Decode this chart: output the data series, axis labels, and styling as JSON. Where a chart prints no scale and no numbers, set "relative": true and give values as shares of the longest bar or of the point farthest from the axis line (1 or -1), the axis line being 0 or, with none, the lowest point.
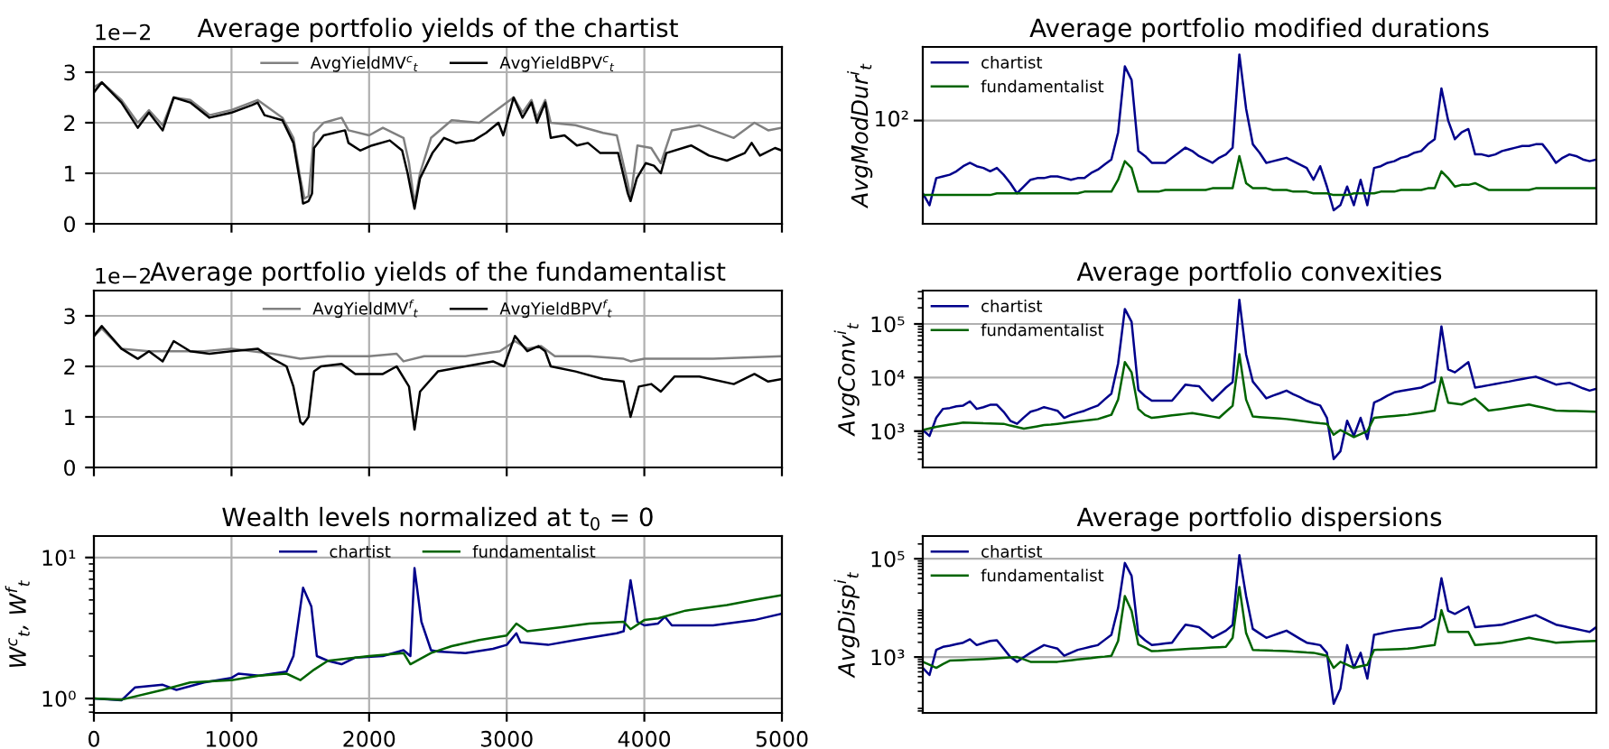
{
  "chart_data": [
    {
      "type": "line",
      "title": "Average portfolio yields of the chartist",
      "annotations": [
        "1e−2"
      ],
      "xlim": [
        0,
        5000
      ],
      "xticks": [
        0,
        1000,
        2000,
        3000,
        4000,
        5000
      ],
      "ylim": [
        0,
        3.5
      ],
      "yticks": [
        0,
        1,
        2,
        3
      ],
      "tick_labels": "y",
      "grid": true,
      "legend": "top",
      "series": [
        {
          "name": "AvgYieldMV$^{c}$$_{t}$",
          "color": "#808080",
          "x": [
            0,
            57,
            200,
            319,
            400,
            500,
            580,
            700,
            840,
            1000,
            1190,
            1370,
            1450,
            1500,
            1530,
            1560,
            1600,
            1670,
            1800,
            1850,
            2000,
            2100,
            2250,
            2290,
            2330,
            2370,
            2450,
            2600,
            2800,
            2950,
            3050,
            3115,
            3180,
            3220,
            3280,
            3320,
            3500,
            3700,
            3800,
            3880,
            3900,
            3950,
            4050,
            4120,
            4200,
            4400,
            4650,
            4800,
            4900,
            5000
          ],
          "values": [
            2.7,
            2.8,
            2.45,
            2.0,
            2.25,
            1.95,
            2.5,
            2.45,
            2.15,
            2.25,
            2.45,
            2.1,
            1.7,
            0.9,
            0.5,
            0.55,
            1.8,
            2.0,
            2.1,
            1.85,
            1.75,
            1.9,
            1.7,
            1.2,
            0.4,
            1.0,
            1.7,
            2.05,
            2.0,
            2.3,
            2.5,
            2.2,
            2.45,
            2.1,
            2.45,
            2.0,
            1.95,
            1.8,
            1.75,
            0.8,
            0.5,
            1.55,
            1.5,
            1.2,
            1.85,
            1.95,
            1.7,
            2.0,
            1.85,
            1.9
          ]
        },
        {
          "name": "AvgYieldBPV$^{c}$$_{t}$",
          "color": "#000000",
          "x": [
            0,
            57,
            200,
            319,
            400,
            500,
            580,
            700,
            840,
            1000,
            1150,
            1190,
            1240,
            1370,
            1450,
            1500,
            1520,
            1560,
            1585,
            1600,
            1670,
            1825,
            1850,
            1935,
            2020,
            2150,
            2240,
            2280,
            2330,
            2370,
            2460,
            2545,
            2630,
            2760,
            2850,
            2940,
            2975,
            3050,
            3115,
            3180,
            3220,
            3280,
            3320,
            3420,
            3510,
            3590,
            3680,
            3810,
            3880,
            3900,
            3945,
            4010,
            4070,
            4120,
            4160,
            4340,
            4470,
            4600,
            4730,
            4780,
            4840,
            4950,
            5000
          ],
          "values": [
            2.6,
            2.8,
            2.4,
            1.9,
            2.2,
            1.85,
            2.5,
            2.4,
            2.1,
            2.2,
            2.35,
            2.4,
            2.15,
            2.05,
            1.6,
            0.8,
            0.4,
            0.45,
            0.6,
            1.5,
            1.75,
            1.85,
            1.6,
            1.45,
            1.55,
            1.65,
            1.45,
            1.0,
            0.3,
            0.9,
            1.4,
            1.7,
            1.6,
            1.65,
            1.8,
            2.0,
            1.75,
            2.5,
            2.1,
            2.4,
            2.0,
            2.4,
            1.7,
            1.75,
            1.55,
            1.6,
            1.4,
            1.4,
            0.6,
            0.45,
            0.9,
            1.2,
            1.15,
            1.0,
            1.4,
            1.55,
            1.35,
            1.25,
            1.4,
            1.6,
            1.35,
            1.5,
            1.45
          ]
        }
      ]
    },
    {
      "type": "line",
      "title": "Average portfolio modified durations",
      "ylabel": "AvgModDur$^{i}$$_{t}$",
      "relative": true,
      "annotations": [
        "10²"
      ],
      "tick_labels": "y",
      "grid": "y",
      "legend": "top left",
      "ref_lines": [
        {
          "axis": "y",
          "value": 0.61,
          "color": "#b0b0b0"
        }
      ],
      "categories": [
        null,
        null,
        null,
        null,
        null,
        null,
        null,
        null,
        null,
        null,
        null,
        null,
        null,
        null,
        null,
        null,
        null,
        null,
        null,
        null,
        null,
        null,
        null,
        null,
        null,
        null,
        null,
        null,
        null,
        null,
        null,
        null,
        null,
        null,
        null,
        null,
        null,
        null,
        null,
        null,
        null,
        null,
        null,
        null,
        null,
        null,
        null,
        null,
        null,
        null,
        null,
        null,
        null,
        null,
        null,
        null,
        null,
        null,
        null,
        null,
        null,
        null,
        null,
        null,
        null,
        null,
        null,
        null,
        null,
        null,
        null,
        null,
        null,
        null,
        null,
        null,
        null,
        null,
        null,
        null,
        null,
        null,
        null,
        null,
        null,
        null,
        null,
        null,
        null,
        null,
        null,
        null,
        null,
        null,
        null,
        null,
        null,
        null,
        null,
        null,
        null
      ],
      "series": [
        {
          "name": "chartist",
          "color": "#00008b",
          "values": [
            0.18,
            0.11,
            0.27,
            0.28,
            0.29,
            0.31,
            0.34,
            0.36,
            0.34,
            0.33,
            0.31,
            0.33,
            0.29,
            0.24,
            0.18,
            0.22,
            0.26,
            0.27,
            0.27,
            0.28,
            0.28,
            0.27,
            0.26,
            0.27,
            0.27,
            0.3,
            0.32,
            0.35,
            0.38,
            0.54,
            0.93,
            0.85,
            0.43,
            0.4,
            0.36,
            0.36,
            0.36,
            0.39,
            0.42,
            0.45,
            0.43,
            0.4,
            0.38,
            0.36,
            0.39,
            0.41,
            0.45,
            1,
            0.68,
            0.47,
            0.42,
            0.36,
            0.37,
            0.38,
            0.39,
            0.37,
            0.35,
            0.33,
            0.26,
            0.34,
            0.22,
            0.08,
            0.11,
            0.22,
            0.11,
            0.26,
            0.11,
            0.33,
            0.34,
            0.36,
            0.37,
            0.39,
            0.4,
            0.42,
            0.43,
            0.47,
            0.5,
            0.8,
            0.61,
            0.5,
            0.54,
            0.56,
            0.41,
            0.41,
            0.4,
            0.41,
            0.43,
            0.44,
            0.45,
            0.46,
            0.46,
            0.47,
            0.47,
            0.42,
            0.36,
            0.39,
            0.41,
            0.4,
            0.38,
            0.37,
            0.38
          ]
        },
        {
          "name": "fundamentalist",
          "color": "#006400",
          "values": [
            0.17,
            0.17,
            0.17,
            0.17,
            0.17,
            0.17,
            0.17,
            0.17,
            0.17,
            0.17,
            0.17,
            0.18,
            0.18,
            0.18,
            0.18,
            0.18,
            0.18,
            0.18,
            0.18,
            0.18,
            0.18,
            0.18,
            0.18,
            0.18,
            0.19,
            0.19,
            0.19,
            0.19,
            0.19,
            0.26,
            0.37,
            0.33,
            0.19,
            0.19,
            0.19,
            0.19,
            0.2,
            0.2,
            0.2,
            0.2,
            0.2,
            0.2,
            0.2,
            0.21,
            0.21,
            0.21,
            0.21,
            0.4,
            0.24,
            0.21,
            0.21,
            0.21,
            0.2,
            0.2,
            0.2,
            0.19,
            0.19,
            0.19,
            0.18,
            0.18,
            0.18,
            0.17,
            0.17,
            0.17,
            0.18,
            0.18,
            0.18,
            0.18,
            0.19,
            0.19,
            0.19,
            0.2,
            0.2,
            0.2,
            0.2,
            0.21,
            0.21,
            0.31,
            0.27,
            0.22,
            0.23,
            0.23,
            0.24,
            0.22,
            0.2,
            0.2,
            0.2,
            0.2,
            0.2,
            0.2,
            0.2,
            0.21,
            0.21,
            0.21,
            0.21,
            0.21,
            0.21,
            0.21,
            0.21,
            0.21,
            0.21
          ]
        }
      ]
    },
    {
      "type": "line",
      "title": "Average portfolio yields of the fundamentalist",
      "annotations": [
        "1e−2"
      ],
      "xlim": [
        0,
        5000
      ],
      "xticks": [
        0,
        1000,
        2000,
        3000,
        4000,
        5000
      ],
      "ylim": [
        0,
        3.5
      ],
      "yticks": [
        0,
        1,
        2,
        3
      ],
      "tick_labels": "y",
      "grid": true,
      "legend": "top",
      "series": [
        {
          "name": "AvgYieldMV$^{f}$$_{t}$",
          "color": "#808080",
          "x": [
            0,
            57,
            200,
            400,
            600,
            800,
            1000,
            1150,
            1300,
            1400,
            1500,
            1700,
            2000,
            2200,
            2250,
            2400,
            2700,
            2950,
            3060,
            3150,
            3250,
            3350,
            3600,
            3850,
            3900,
            4000,
            4500,
            5000
          ],
          "values": [
            2.6,
            2.75,
            2.35,
            2.3,
            2.3,
            2.3,
            2.35,
            2.3,
            2.25,
            2.2,
            2.15,
            2.2,
            2.2,
            2.25,
            2.1,
            2.2,
            2.2,
            2.3,
            2.5,
            2.35,
            2.4,
            2.2,
            2.2,
            2.15,
            2.1,
            2.15,
            2.15,
            2.2
          ]
        },
        {
          "name": "AvgYieldBPV$^{f}$$_{t}$",
          "color": "#000000",
          "x": [
            0,
            57,
            200,
            319,
            400,
            500,
            580,
            700,
            840,
            1000,
            1190,
            1300,
            1400,
            1450,
            1500,
            1520,
            1560,
            1600,
            1650,
            1800,
            1900,
            2100,
            2200,
            2290,
            2330,
            2370,
            2500,
            2700,
            2900,
            2980,
            3060,
            3150,
            3230,
            3280,
            3320,
            3500,
            3700,
            3850,
            3900,
            3960,
            4050,
            4120,
            4220,
            4400,
            4650,
            4800,
            4900,
            5000
          ],
          "values": [
            2.6,
            2.8,
            2.35,
            2.15,
            2.3,
            2.1,
            2.5,
            2.3,
            2.25,
            2.3,
            2.35,
            2.15,
            2.0,
            1.6,
            0.9,
            0.85,
            1.0,
            1.9,
            2.0,
            2.05,
            1.85,
            1.85,
            2.0,
            1.6,
            0.75,
            1.5,
            1.9,
            2.0,
            2.1,
            2.0,
            2.6,
            2.3,
            2.4,
            2.3,
            2.0,
            1.9,
            1.75,
            1.7,
            1.0,
            1.6,
            1.65,
            1.5,
            1.8,
            1.8,
            1.65,
            1.85,
            1.7,
            1.75
          ]
        }
      ]
    },
    {
      "type": "line",
      "title": "Average portfolio convexities",
      "ylabel": "AvgConv$^{i}$$_{t}$",
      "log": "y",
      "ylim": [
        210,
        420000
      ],
      "yticks": [
        {
          "value": 1000,
          "label": "10³"
        },
        {
          "value": 10000,
          "label": "10⁴"
        },
        {
          "value": 100000,
          "label": "10⁵"
        }
      ],
      "tick_labels": "y",
      "grid": "y",
      "legend": "top left",
      "categories": [
        null,
        null,
        null,
        null,
        null,
        null,
        null,
        null,
        null,
        null,
        null,
        null,
        null,
        null,
        null,
        null,
        null,
        null,
        null,
        null,
        null,
        null,
        null,
        null,
        null,
        null,
        null,
        null,
        null,
        null,
        null,
        null,
        null,
        null,
        null,
        null,
        null,
        null,
        null,
        null,
        null,
        null,
        null,
        null,
        null,
        null,
        null,
        null,
        null,
        null,
        null,
        null,
        null,
        null,
        null,
        null,
        null,
        null,
        null,
        null,
        null,
        null,
        null,
        null,
        null,
        null,
        null,
        null,
        null,
        null,
        null,
        null,
        null,
        null,
        null,
        null,
        null,
        null,
        null,
        null,
        null,
        null,
        null,
        null,
        null,
        null,
        null,
        null,
        null,
        null,
        null,
        null,
        null,
        null,
        null,
        null,
        null,
        null,
        null,
        null,
        null
      ],
      "series": [
        {
          "name": "chartist",
          "color": "#00008b",
          "values": [
            1050,
            810,
            1770,
            2600,
            2700,
            2900,
            3000,
            3600,
            2600,
            2800,
            3100,
            3100,
            2300,
            1560,
            1370,
            1800,
            2300,
            2500,
            2800,
            2600,
            2400,
            1770,
            2000,
            2200,
            2400,
            2700,
            3000,
            3900,
            5000,
            18400,
            190000,
            110000,
            5900,
            4500,
            3700,
            3700,
            3700,
            3700,
            5200,
            7400,
            7100,
            6900,
            5000,
            3700,
            4900,
            6500,
            8200,
            283000,
            27000,
            8400,
            5900,
            4100,
            4600,
            5100,
            5700,
            4900,
            4300,
            3700,
            3300,
            3000,
            1770,
            300,
            420,
            1560,
            810,
            1770,
            710,
            3400,
            3900,
            4600,
            5300,
            5600,
            5900,
            6200,
            6500,
            7400,
            8400,
            90000,
            14200,
            12500,
            15600,
            19400,
            6500,
            6800,
            7200,
            7600,
            8000,
            8400,
            8900,
            9400,
            9900,
            10400,
            9300,
            8300,
            7400,
            7700,
            8000,
            7100,
            6300,
            5700,
            6200
          ]
        },
        {
          "name": "fundamentalist",
          "color": "#006400",
          "values": [
            1050,
            1120,
            1200,
            1260,
            1320,
            1380,
            1440,
            1430,
            1420,
            1400,
            1390,
            1380,
            1370,
            1270,
            1190,
            1110,
            1170,
            1230,
            1300,
            1330,
            1370,
            1420,
            1470,
            1520,
            1570,
            1620,
            1680,
            1840,
            2020,
            3870,
            19400,
            12500,
            2600,
            2000,
            1770,
            1830,
            1900,
            1970,
            2030,
            2100,
            2180,
            2070,
            1970,
            1870,
            1770,
            2300,
            2980,
            27200,
            3870,
            1870,
            1830,
            1790,
            1750,
            1720,
            1680,
            1620,
            1560,
            1500,
            1440,
            1400,
            1370,
            855,
            1050,
            900,
            771,
            880,
            1000,
            1770,
            1820,
            1870,
            1920,
            1970,
            2020,
            2110,
            2200,
            2310,
            2420,
            10000,
            3400,
            3270,
            3140,
            3570,
            4070,
            3140,
            2420,
            2520,
            2620,
            2740,
            2870,
            3000,
            3140,
            2940,
            2760,
            2590,
            2420,
            2400,
            2380,
            2360,
            2340,
            2320,
            2300
          ]
        }
      ]
    },
    {
      "type": "line",
      "title": "Wealth levels normalized at t$_{0}$ = 0",
      "ylabel": "W$^{c}$$_{t}$, W$^{f}$$_{t}$",
      "log": "y",
      "xlim": [
        0,
        5000
      ],
      "xticks": [
        0,
        1000,
        2000,
        3000,
        4000,
        5000
      ],
      "ylim": [
        0.79,
        14.2
      ],
      "yticks": [
        {
          "value": 1,
          "label": "10⁰"
        },
        {
          "value": 10,
          "label": "10¹"
        }
      ],
      "grid": true,
      "legend": "top",
      "series": [
        {
          "name": "chartist",
          "color": "#00008b",
          "x": [
            0,
            200,
            300,
            500,
            600,
            800,
            1000,
            1050,
            1200,
            1400,
            1450,
            1520,
            1580,
            1620,
            1700,
            1800,
            1900,
            2100,
            2250,
            2300,
            2330,
            2380,
            2450,
            2500,
            2700,
            2900,
            3000,
            3070,
            3100,
            3300,
            3500,
            3800,
            3850,
            3900,
            3950,
            4000,
            4100,
            4150,
            4200,
            4500,
            4800,
            5000
          ],
          "values": [
            1.0,
            0.97,
            1.2,
            1.25,
            1.15,
            1.3,
            1.4,
            1.5,
            1.45,
            1.55,
            2.0,
            6.1,
            4.5,
            2.0,
            1.85,
            1.75,
            1.95,
            2.0,
            2.2,
            2.0,
            8.4,
            3.5,
            2.2,
            2.15,
            2.1,
            2.25,
            2.4,
            2.9,
            2.5,
            2.4,
            2.6,
            2.9,
            3.0,
            6.9,
            3.5,
            3.3,
            3.4,
            3.8,
            3.3,
            3.3,
            3.6,
            4.0
          ]
        },
        {
          "name": "fundamentalist",
          "color": "#006400",
          "x": [
            0,
            200,
            500,
            700,
            1000,
            1200,
            1400,
            1500,
            1600,
            1700,
            2000,
            2250,
            2300,
            2450,
            2600,
            2800,
            3000,
            3070,
            3150,
            3400,
            3600,
            3850,
            3900,
            4000,
            4100,
            4300,
            4600,
            4800,
            5000
          ],
          "values": [
            1.0,
            0.98,
            1.15,
            1.3,
            1.35,
            1.45,
            1.5,
            1.35,
            1.6,
            1.85,
            2.0,
            2.1,
            1.75,
            2.1,
            2.35,
            2.6,
            2.8,
            3.4,
            3.0,
            3.2,
            3.4,
            3.5,
            3.1,
            3.6,
            3.7,
            4.2,
            4.6,
            5.0,
            5.4
          ]
        }
      ]
    },
    {
      "type": "line",
      "title": "Average portfolio dispersions",
      "ylabel": "AvgDisp$^{i}$$_{t}$",
      "log": "y",
      "ylim": [
        73,
        290000
      ],
      "yticks": [
        {
          "value": 1000,
          "label": "10³"
        },
        {
          "value": 100000,
          "label": "10⁵"
        }
      ],
      "tick_labels": "y",
      "grid": "y",
      "legend": "top left",
      "categories": [
        null,
        null,
        null,
        null,
        null,
        null,
        null,
        null,
        null,
        null,
        null,
        null,
        null,
        null,
        null,
        null,
        null,
        null,
        null,
        null,
        null,
        null,
        null,
        null,
        null,
        null,
        null,
        null,
        null,
        null,
        null,
        null,
        null,
        null,
        null,
        null,
        null,
        null,
        null,
        null,
        null,
        null,
        null,
        null,
        null,
        null,
        null,
        null,
        null,
        null,
        null,
        null,
        null,
        null,
        null,
        null,
        null,
        null,
        null,
        null,
        null,
        null,
        null,
        null,
        null,
        null,
        null,
        null,
        null,
        null,
        null,
        null,
        null,
        null,
        null,
        null,
        null,
        null,
        null,
        null,
        null,
        null,
        null,
        null,
        null,
        null,
        null,
        null,
        null,
        null,
        null,
        null,
        null,
        null,
        null,
        null,
        null,
        null,
        null,
        null,
        null
      ],
      "series": [
        {
          "name": "chartist",
          "color": "#00008b",
          "values": [
            603,
            431,
            1400,
            1610,
            1700,
            1830,
            1960,
            2300,
            1750,
            1930,
            2130,
            2200,
            1480,
            1000,
            800,
            990,
            1220,
            1460,
            1750,
            1610,
            1480,
            1060,
            1220,
            1400,
            1510,
            1630,
            1750,
            2230,
            2830,
            10000,
            82000,
            45000,
            2900,
            2200,
            1750,
            1820,
            1890,
            1960,
            3000,
            4560,
            4300,
            4070,
            3170,
            2460,
            2910,
            3440,
            4500,
            118000,
            17500,
            3740,
            3030,
            2460,
            2750,
            3080,
            3440,
            2840,
            2350,
            1960,
            1850,
            1750,
            1220,
            112,
            226,
            1750,
            603,
            1220,
            364,
            2830,
            3010,
            3230,
            3440,
            3590,
            3750,
            3900,
            4070,
            4950,
            6030,
            40000,
            8690,
            7550,
            8950,
            10600,
            4070,
            4180,
            4300,
            4430,
            4560,
            4990,
            5450,
            5960,
            6520,
            7140,
            6130,
            5280,
            4560,
            4260,
            3980,
            3720,
            3480,
            3250,
            4070
          ]
        },
        {
          "name": "fundamentalist",
          "color": "#006400",
          "values": [
            800,
            700,
            603,
            720,
            845,
            860,
            870,
            880,
            895,
            905,
            920,
            940,
            960,
            980,
            1000,
            900,
            800,
            800,
            800,
            800,
            800,
            830,
            860,
            890,
            920,
            950,
            990,
            1020,
            1060,
            2130,
            17500,
            8690,
            1800,
            1550,
            1320,
            1340,
            1370,
            1400,
            1430,
            1450,
            1480,
            1500,
            1530,
            1560,
            1580,
            1610,
            2460,
            26700,
            3070,
            1400,
            1380,
            1370,
            1350,
            1340,
            1320,
            1290,
            1270,
            1240,
            1220,
            1140,
            1060,
            603,
            800,
            700,
            603,
            650,
            694,
            1400,
            1410,
            1420,
            1440,
            1460,
            1480,
            1540,
            1610,
            1680,
            1750,
            9000,
            3250,
            3250,
            3250,
            3250,
            1750,
            1800,
            1850,
            1900,
            1960,
            2070,
            2190,
            2320,
            2460,
            2320,
            2200,
            2080,
            1960,
            1990,
            2020,
            2050,
            2090,
            2110,
            2130
          ]
        }
      ]
    }
  ]
}
